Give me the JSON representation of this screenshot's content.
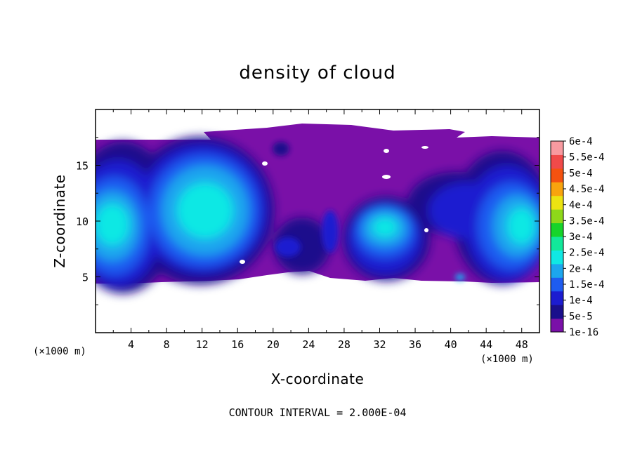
{
  "chart_data": {
    "type": "heatmap",
    "title": "density of cloud",
    "xlabel": "X-coordinate",
    "ylabel": "Z-coordinate",
    "x_unit": "(×1000 m)",
    "y_unit": "(×1000 m)",
    "xlim": [
      0,
      50
    ],
    "ylim": [
      0,
      20
    ],
    "x_ticks": [
      4,
      8,
      12,
      16,
      20,
      24,
      28,
      32,
      36,
      40,
      44,
      48
    ],
    "y_ticks": [
      5,
      10,
      15
    ],
    "colorbar": {
      "labels": [
        "1e-16",
        "5e-5",
        "1e-4",
        "1.5e-4",
        "2e-4",
        "2.5e-4",
        "3e-4",
        "3.5e-4",
        "4e-4",
        "4.5e-4",
        "5e-4",
        "5.5e-4",
        "6e-4"
      ],
      "colors": [
        "#7a10a8",
        "#1a0f8c",
        "#1c1cd0",
        "#1e5cf0",
        "#1ca6ee",
        "#10e8e4",
        "#12e89a",
        "#16d42a",
        "#8ed81a",
        "#ece412",
        "#f8a40e",
        "#f45210",
        "#f04a4a",
        "#f89aa0"
      ]
    },
    "footnote": "CONTOUR INTERVAL = 2.000E-04",
    "field": {
      "cloud_base_km": 5,
      "cloud_top_km": 17.3,
      "blobs": [
        {
          "x": 2.5,
          "z": 10.5,
          "value": 0.00018
        },
        {
          "x": 11.5,
          "z": 11.5,
          "value": 0.0002
        },
        {
          "x": 31.5,
          "z": 8.5,
          "value": 0.00019
        },
        {
          "x": 48.5,
          "z": 10.5,
          "value": 0.00019
        },
        {
          "x": 41.0,
          "z": 5.0,
          "value": 0.00016
        }
      ]
    }
  }
}
